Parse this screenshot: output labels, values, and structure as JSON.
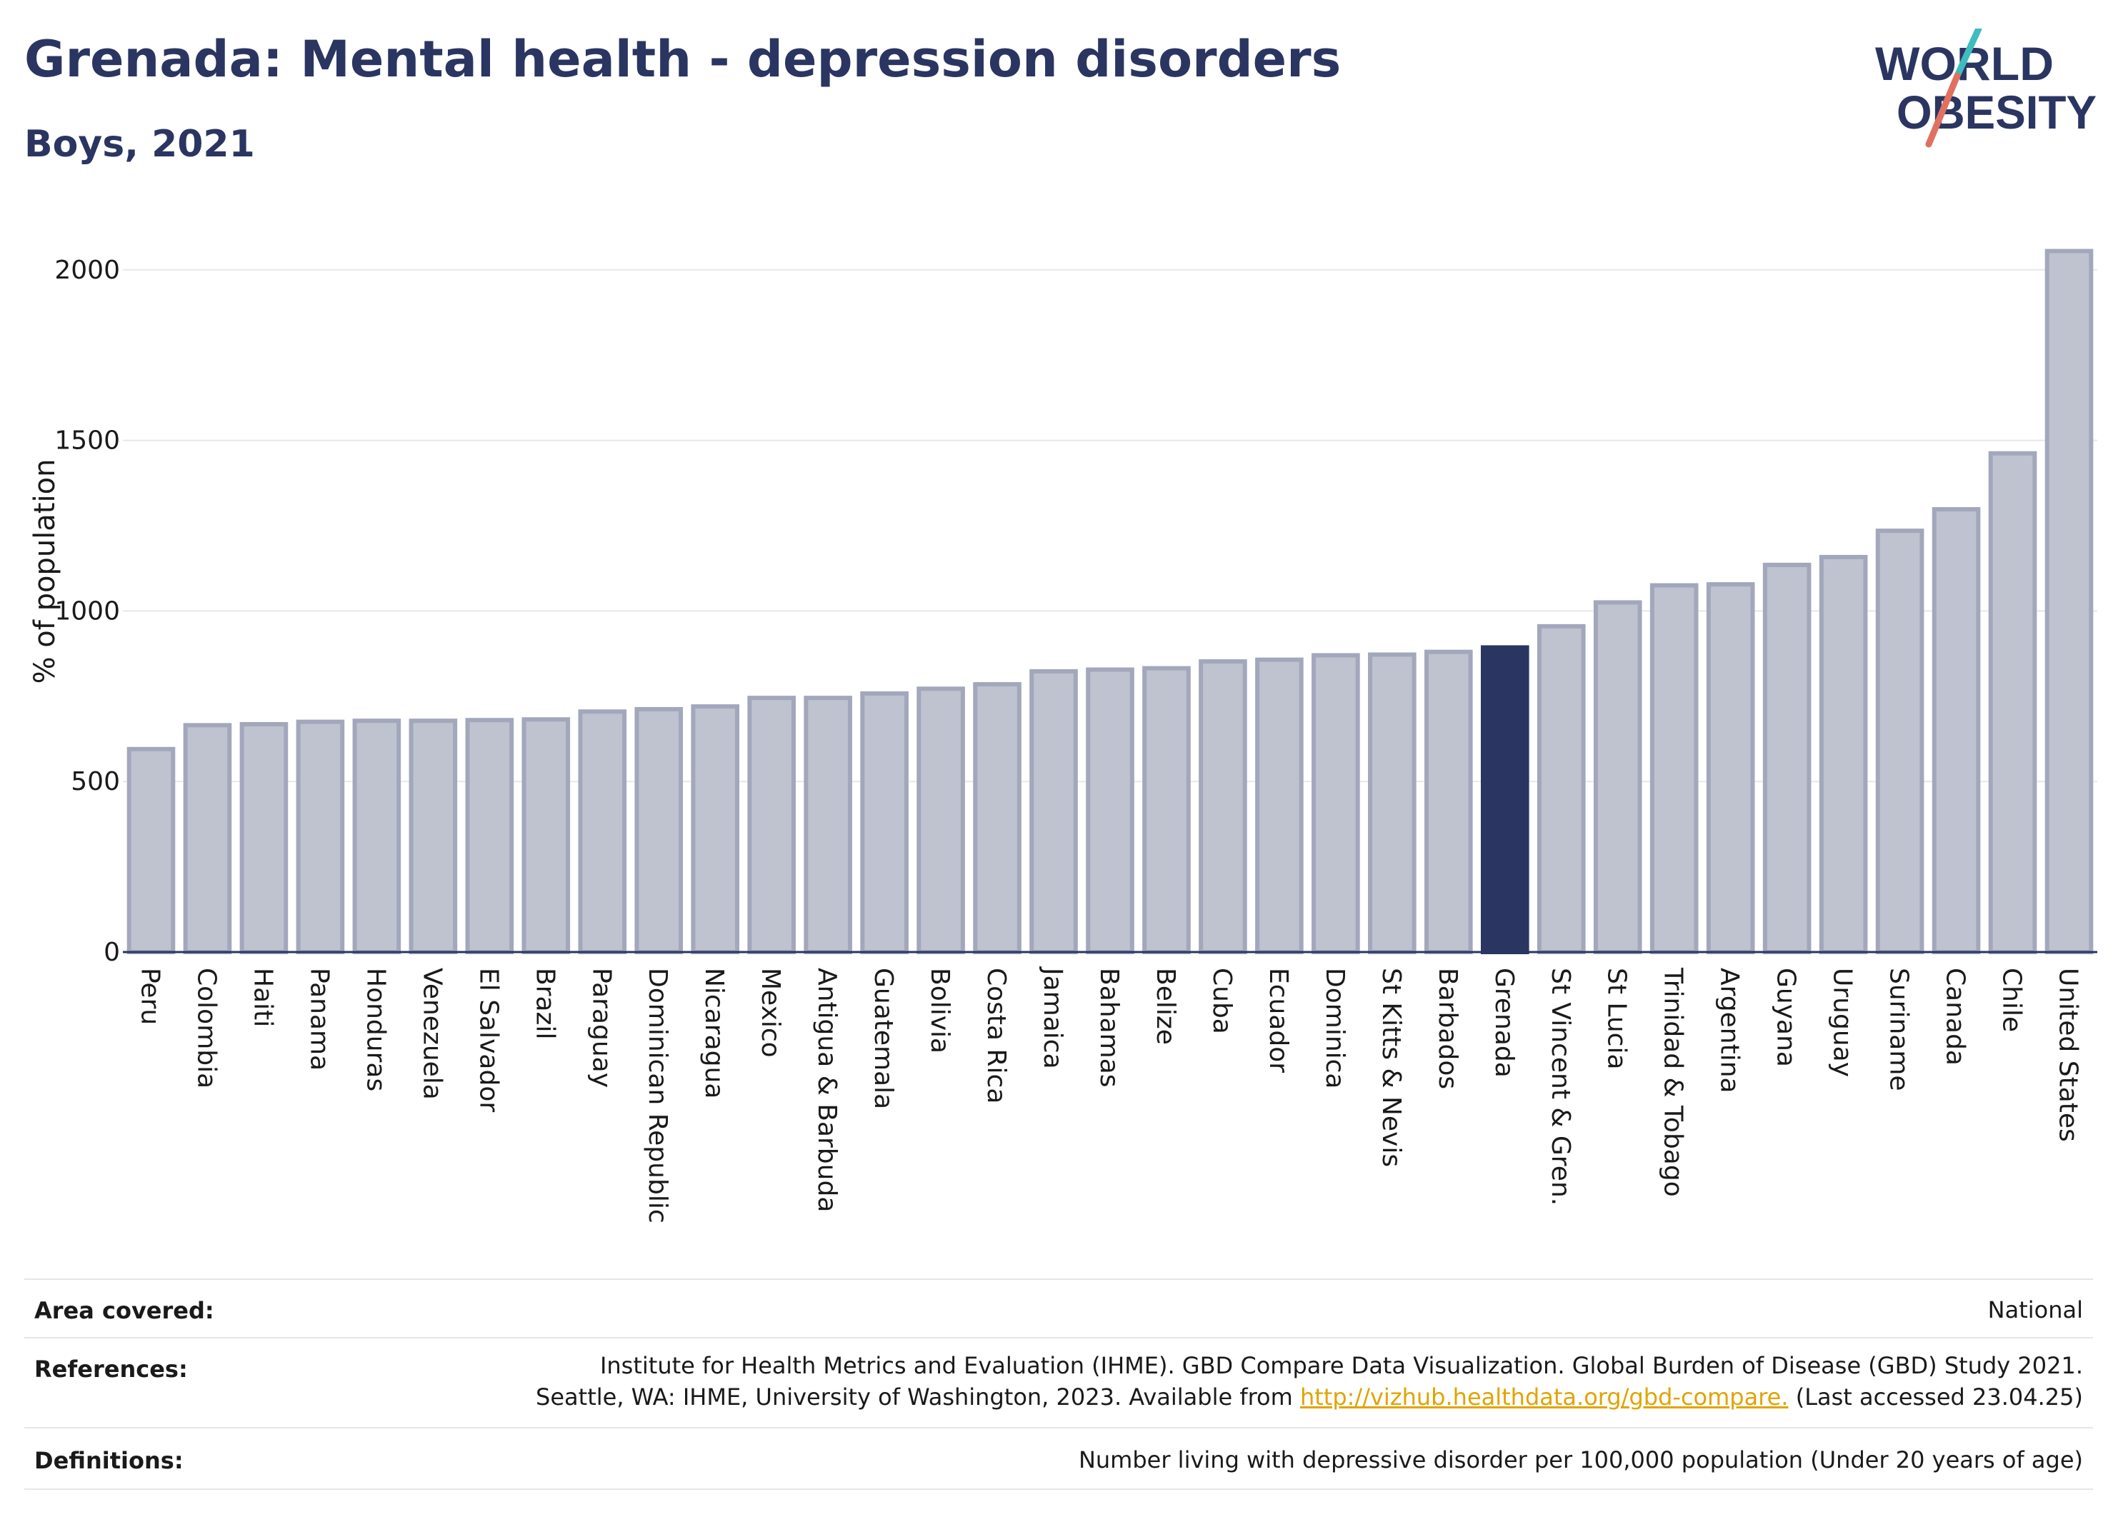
{
  "header": {
    "title": "Grenada: Mental health - depression disorders",
    "subtitle": "Boys, 2021"
  },
  "logo": {
    "line1": "WORLD",
    "line2": "OBESITY"
  },
  "chart_data": {
    "type": "bar",
    "ylabel": "% of population",
    "ylim": [
      0,
      2100
    ],
    "yticks": [
      0,
      500,
      1000,
      1500,
      2000
    ],
    "grid": true,
    "highlight": "Grenada",
    "categories": [
      "Peru",
      "Colombia",
      "Haiti",
      "Panama",
      "Honduras",
      "Venezuela",
      "El Salvador",
      "Brazil",
      "Paraguay",
      "Dominican Republic",
      "Nicaragua",
      "Mexico",
      "Antigua & Barbuda",
      "Guatemala",
      "Bolivia",
      "Costa Rica",
      "Jamaica",
      "Bahamas",
      "Belize",
      "Cuba",
      "Ecuador",
      "Dominica",
      "St Kitts & Nevis",
      "Barbados",
      "Grenada",
      "St Vincent & Gren.",
      "St Lucia",
      "Trinidad & Tobago",
      "Argentina",
      "Guyana",
      "Uruguay",
      "Suriname",
      "Canada",
      "Chile",
      "United States"
    ],
    "values": [
      595,
      665,
      668,
      675,
      678,
      678,
      680,
      682,
      705,
      712,
      720,
      745,
      745,
      758,
      772,
      785,
      823,
      828,
      832,
      852,
      857,
      870,
      872,
      880,
      893,
      955,
      1025,
      1075,
      1078,
      1135,
      1158,
      1235,
      1298,
      1462,
      2055
    ]
  },
  "colors": {
    "bar": "#bfc2cf",
    "bar_border": "#a2a7bb",
    "highlight": "#2b3561",
    "title": "#2b3561",
    "grid": "#e8e8ec",
    "axis": "#2b3561",
    "link": "#e0a400",
    "logo_red": "#e07060",
    "logo_teal": "#3dbdbd"
  },
  "info": {
    "area_label": "Area covered:",
    "area_value": "National",
    "references_label": "References:",
    "references_line1": "Institute for Health Metrics and Evaluation (IHME). GBD Compare Data Visualization. Global Burden of Disease (GBD) Study 2021.",
    "references_line2_prefix": "Seattle, WA: IHME, University of Washington, 2023. Available from ",
    "references_link": "http://vizhub.healthdata.org/gbd-compare.",
    "references_line2_suffix": " (Last accessed 23.04.25)",
    "definitions_label": "Definitions:",
    "definitions_value": "Number living with depressive disorder per 100,000 population (Under 20 years of age)"
  }
}
